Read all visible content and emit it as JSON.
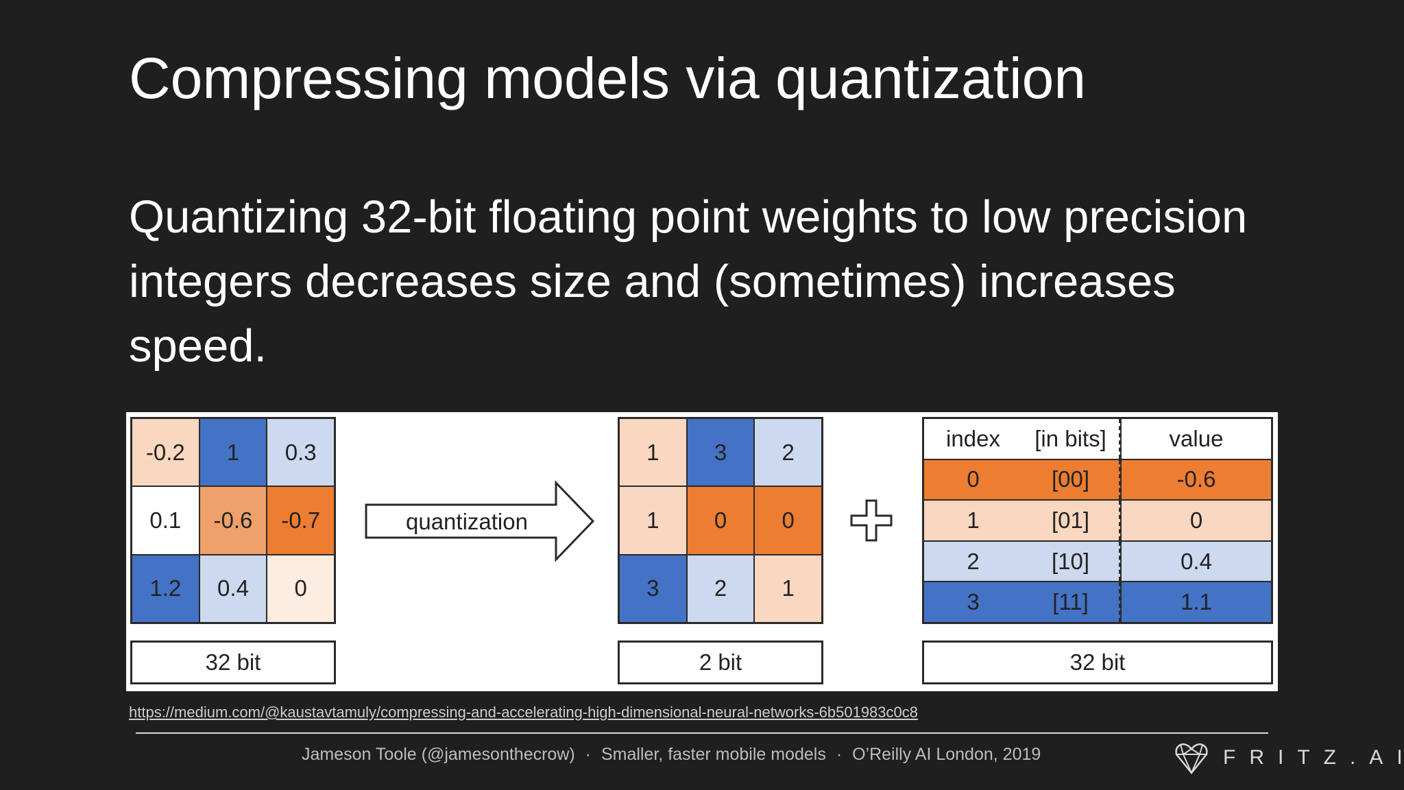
{
  "slide": {
    "title": "Compressing models via quantization",
    "body": "Quantizing 32-bit floating point weights to low precision integers decreases size and (sometimes) increases speed.",
    "link": "https://medium.com/@kaustavtamuly/compressing-and-accelerating-high-dimensional-neural-networks-6b501983c0c8",
    "footer": {
      "author": "Jameson Toole (@jamesonthecrow)",
      "separator": "·",
      "talk": "Smaller, faster mobile models",
      "event": "O’Reilly AI London, 2019"
    },
    "brand": "FRITZ.AI"
  },
  "colors": {
    "background": "#1f1f20",
    "dark_blue": "#4472c4",
    "light_blue": "#cdd9ee",
    "dark_orange": "#ed7d31",
    "medium_orange": "#f0a069",
    "light_orange": "#fad7c0",
    "pale_orange": "#fdece0",
    "white": "#ffffff"
  },
  "diagram": {
    "original": {
      "caption": "32 bit",
      "cells": [
        {
          "text": "-0.2",
          "color": "#fad7c0"
        },
        {
          "text": "1",
          "color": "#4472c4"
        },
        {
          "text": "0.3",
          "color": "#cdd9ee"
        },
        {
          "text": "0.1",
          "color": "#ffffff"
        },
        {
          "text": "-0.6",
          "color": "#f0a069"
        },
        {
          "text": "-0.7",
          "color": "#ed7d31"
        },
        {
          "text": "1.2",
          "color": "#4472c4"
        },
        {
          "text": "0.4",
          "color": "#cdd9ee"
        },
        {
          "text": "0",
          "color": "#fdece0"
        }
      ]
    },
    "arrow_label": "quantization",
    "quantized": {
      "caption": "2 bit",
      "cells": [
        {
          "text": "1",
          "color": "#fad7c0"
        },
        {
          "text": "3",
          "color": "#4472c4"
        },
        {
          "text": "2",
          "color": "#cdd9ee"
        },
        {
          "text": "1",
          "color": "#fad7c0"
        },
        {
          "text": "0",
          "color": "#ed7d31"
        },
        {
          "text": "0",
          "color": "#ed7d31"
        },
        {
          "text": "3",
          "color": "#4472c4"
        },
        {
          "text": "2",
          "color": "#cdd9ee"
        },
        {
          "text": "1",
          "color": "#fad7c0"
        }
      ]
    },
    "lookup_table": {
      "caption": "32 bit",
      "headers": [
        "index",
        "[in bits]",
        "value"
      ],
      "rows": [
        {
          "index": "0",
          "bits": "[00]",
          "value": "-0.6",
          "color": "#ed7d31"
        },
        {
          "index": "1",
          "bits": "[01]",
          "value": "0",
          "color": "#fad7c0"
        },
        {
          "index": "2",
          "bits": "[10]",
          "value": "0.4",
          "color": "#cdd9ee"
        },
        {
          "index": "3",
          "bits": "[11]",
          "value": "1.1",
          "color": "#4472c4"
        }
      ]
    }
  }
}
